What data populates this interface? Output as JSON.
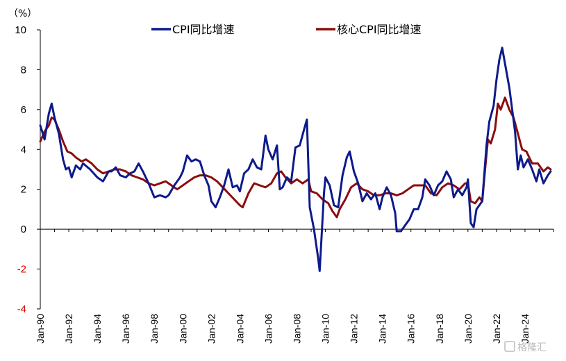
{
  "chart_data": {
    "type": "line",
    "unit_label": "（%）",
    "ylim": [
      -4,
      10
    ],
    "yticks": [
      10,
      8,
      6,
      4,
      2,
      0,
      -2,
      -4
    ],
    "xlim": [
      1990,
      2026
    ],
    "xticks": [
      "Jan-90",
      "Jan-92",
      "Jan-94",
      "Jan-96",
      "Jan-98",
      "Jan-00",
      "Jan-02",
      "Jan-04",
      "Jan-06",
      "Jan-08",
      "Jan-10",
      "Jan-12",
      "Jan-14",
      "Jan-16",
      "Jan-18",
      "Jan-20",
      "Jan-22",
      "Jan-24"
    ],
    "legend_position": "top",
    "grid": false,
    "series": [
      {
        "name": "CPI同比增速",
        "color": "#0d1a8c",
        "points": [
          [
            1990.0,
            5.2
          ],
          [
            1990.3,
            4.5
          ],
          [
            1990.6,
            5.8
          ],
          [
            1990.8,
            6.3
          ],
          [
            1991.0,
            5.6
          ],
          [
            1991.3,
            4.8
          ],
          [
            1991.6,
            3.5
          ],
          [
            1991.8,
            3.0
          ],
          [
            1992.0,
            3.1
          ],
          [
            1992.2,
            2.6
          ],
          [
            1992.5,
            3.2
          ],
          [
            1992.8,
            3.0
          ],
          [
            1993.0,
            3.3
          ],
          [
            1993.5,
            3.0
          ],
          [
            1994.0,
            2.6
          ],
          [
            1994.4,
            2.4
          ],
          [
            1994.8,
            2.9
          ],
          [
            1995.0,
            2.9
          ],
          [
            1995.3,
            3.1
          ],
          [
            1995.6,
            2.7
          ],
          [
            1996.0,
            2.6
          ],
          [
            1996.3,
            2.8
          ],
          [
            1996.6,
            2.9
          ],
          [
            1996.9,
            3.3
          ],
          [
            1997.2,
            2.9
          ],
          [
            1997.6,
            2.3
          ],
          [
            1998.0,
            1.6
          ],
          [
            1998.4,
            1.7
          ],
          [
            1998.8,
            1.6
          ],
          [
            1999.0,
            1.7
          ],
          [
            1999.4,
            2.2
          ],
          [
            1999.8,
            2.6
          ],
          [
            2000.0,
            2.9
          ],
          [
            2000.3,
            3.7
          ],
          [
            2000.6,
            3.4
          ],
          [
            2000.9,
            3.5
          ],
          [
            2001.2,
            3.4
          ],
          [
            2001.5,
            2.7
          ],
          [
            2001.8,
            2.2
          ],
          [
            2002.0,
            1.4
          ],
          [
            2002.3,
            1.1
          ],
          [
            2002.6,
            1.6
          ],
          [
            2002.9,
            2.2
          ],
          [
            2003.2,
            3.0
          ],
          [
            2003.5,
            2.1
          ],
          [
            2003.8,
            2.2
          ],
          [
            2004.0,
            1.9
          ],
          [
            2004.3,
            2.8
          ],
          [
            2004.6,
            3.0
          ],
          [
            2004.9,
            3.5
          ],
          [
            2005.2,
            3.1
          ],
          [
            2005.5,
            3.0
          ],
          [
            2005.8,
            4.7
          ],
          [
            2006.0,
            4.0
          ],
          [
            2006.3,
            3.5
          ],
          [
            2006.6,
            4.2
          ],
          [
            2006.8,
            2.0
          ],
          [
            2007.0,
            2.1
          ],
          [
            2007.3,
            2.6
          ],
          [
            2007.6,
            2.4
          ],
          [
            2007.9,
            4.1
          ],
          [
            2008.2,
            4.2
          ],
          [
            2008.5,
            5.0
          ],
          [
            2008.7,
            5.5
          ],
          [
            2008.9,
            1.1
          ],
          [
            2009.2,
            0.0
          ],
          [
            2009.5,
            -1.5
          ],
          [
            2009.6,
            -2.1
          ],
          [
            2009.9,
            1.8
          ],
          [
            2010.0,
            2.6
          ],
          [
            2010.3,
            2.2
          ],
          [
            2010.6,
            1.2
          ],
          [
            2010.9,
            1.1
          ],
          [
            2011.2,
            2.7
          ],
          [
            2011.5,
            3.6
          ],
          [
            2011.7,
            3.9
          ],
          [
            2012.0,
            2.9
          ],
          [
            2012.3,
            2.3
          ],
          [
            2012.6,
            1.4
          ],
          [
            2012.9,
            1.8
          ],
          [
            2013.2,
            1.5
          ],
          [
            2013.5,
            1.8
          ],
          [
            2013.8,
            1.0
          ],
          [
            2014.0,
            1.6
          ],
          [
            2014.3,
            2.1
          ],
          [
            2014.6,
            1.7
          ],
          [
            2014.9,
            0.8
          ],
          [
            2015.0,
            -0.1
          ],
          [
            2015.3,
            -0.1
          ],
          [
            2015.6,
            0.2
          ],
          [
            2015.9,
            0.5
          ],
          [
            2016.2,
            1.0
          ],
          [
            2016.5,
            1.0
          ],
          [
            2016.8,
            1.6
          ],
          [
            2017.0,
            2.5
          ],
          [
            2017.3,
            2.2
          ],
          [
            2017.6,
            1.7
          ],
          [
            2017.9,
            2.2
          ],
          [
            2018.2,
            2.4
          ],
          [
            2018.5,
            2.9
          ],
          [
            2018.8,
            2.5
          ],
          [
            2019.0,
            1.6
          ],
          [
            2019.3,
            2.0
          ],
          [
            2019.6,
            1.7
          ],
          [
            2019.9,
            2.1
          ],
          [
            2020.0,
            2.5
          ],
          [
            2020.2,
            0.3
          ],
          [
            2020.4,
            0.1
          ],
          [
            2020.6,
            1.0
          ],
          [
            2020.9,
            1.3
          ],
          [
            2021.0,
            1.4
          ],
          [
            2021.3,
            4.2
          ],
          [
            2021.5,
            5.4
          ],
          [
            2021.8,
            6.2
          ],
          [
            2022.0,
            7.5
          ],
          [
            2022.2,
            8.5
          ],
          [
            2022.4,
            9.1
          ],
          [
            2022.6,
            8.3
          ],
          [
            2022.9,
            7.1
          ],
          [
            2023.1,
            6.0
          ],
          [
            2023.3,
            4.9
          ],
          [
            2023.5,
            3.0
          ],
          [
            2023.7,
            3.7
          ],
          [
            2023.9,
            3.1
          ],
          [
            2024.2,
            3.5
          ],
          [
            2024.5,
            3.0
          ],
          [
            2024.8,
            2.4
          ],
          [
            2025.0,
            3.0
          ],
          [
            2025.3,
            2.3
          ],
          [
            2025.6,
            2.7
          ],
          [
            2025.8,
            2.9
          ]
        ]
      },
      {
        "name": "核心CPI同比增速",
        "color": "#8b0d0d",
        "points": [
          [
            1990.0,
            4.4
          ],
          [
            1990.3,
            4.9
          ],
          [
            1990.6,
            5.2
          ],
          [
            1990.8,
            5.6
          ],
          [
            1991.0,
            5.5
          ],
          [
            1991.3,
            5.0
          ],
          [
            1991.6,
            4.4
          ],
          [
            1991.9,
            3.9
          ],
          [
            1992.2,
            3.8
          ],
          [
            1992.5,
            3.6
          ],
          [
            1992.9,
            3.4
          ],
          [
            1993.2,
            3.5
          ],
          [
            1993.6,
            3.3
          ],
          [
            1994.0,
            3.0
          ],
          [
            1994.4,
            2.8
          ],
          [
            1994.8,
            2.9
          ],
          [
            1995.2,
            3.0
          ],
          [
            1995.6,
            3.0
          ],
          [
            1996.0,
            2.9
          ],
          [
            1996.4,
            2.7
          ],
          [
            1996.8,
            2.6
          ],
          [
            1997.2,
            2.5
          ],
          [
            1997.6,
            2.3
          ],
          [
            1998.0,
            2.2
          ],
          [
            1998.4,
            2.3
          ],
          [
            1998.8,
            2.4
          ],
          [
            1999.2,
            2.2
          ],
          [
            1999.6,
            2.0
          ],
          [
            2000.0,
            2.2
          ],
          [
            2000.4,
            2.4
          ],
          [
            2000.8,
            2.6
          ],
          [
            2001.2,
            2.7
          ],
          [
            2001.6,
            2.7
          ],
          [
            2002.0,
            2.6
          ],
          [
            2002.4,
            2.4
          ],
          [
            2002.8,
            2.1
          ],
          [
            2003.2,
            1.8
          ],
          [
            2003.6,
            1.5
          ],
          [
            2004.0,
            1.2
          ],
          [
            2004.2,
            1.1
          ],
          [
            2004.6,
            1.8
          ],
          [
            2005.0,
            2.3
          ],
          [
            2005.4,
            2.2
          ],
          [
            2005.8,
            2.1
          ],
          [
            2006.2,
            2.3
          ],
          [
            2006.6,
            2.8
          ],
          [
            2006.9,
            2.9
          ],
          [
            2007.2,
            2.6
          ],
          [
            2007.6,
            2.3
          ],
          [
            2008.0,
            2.5
          ],
          [
            2008.4,
            2.3
          ],
          [
            2008.8,
            2.5
          ],
          [
            2009.0,
            1.9
          ],
          [
            2009.4,
            1.8
          ],
          [
            2009.8,
            1.5
          ],
          [
            2010.2,
            1.3
          ],
          [
            2010.5,
            0.9
          ],
          [
            2010.8,
            0.6
          ],
          [
            2011.0,
            1.0
          ],
          [
            2011.4,
            1.5
          ],
          [
            2011.8,
            2.1
          ],
          [
            2012.2,
            2.3
          ],
          [
            2012.6,
            2.0
          ],
          [
            2013.0,
            1.9
          ],
          [
            2013.4,
            1.7
          ],
          [
            2013.8,
            1.7
          ],
          [
            2014.2,
            1.8
          ],
          [
            2014.6,
            1.8
          ],
          [
            2015.0,
            1.7
          ],
          [
            2015.4,
            1.8
          ],
          [
            2015.8,
            2.0
          ],
          [
            2016.2,
            2.2
          ],
          [
            2016.6,
            2.2
          ],
          [
            2017.0,
            2.2
          ],
          [
            2017.4,
            1.8
          ],
          [
            2017.8,
            1.7
          ],
          [
            2018.2,
            2.1
          ],
          [
            2018.6,
            2.3
          ],
          [
            2019.0,
            2.2
          ],
          [
            2019.4,
            2.0
          ],
          [
            2019.8,
            2.3
          ],
          [
            2020.0,
            2.3
          ],
          [
            2020.2,
            1.4
          ],
          [
            2020.5,
            1.3
          ],
          [
            2020.8,
            1.6
          ],
          [
            2021.0,
            1.4
          ],
          [
            2021.2,
            3.0
          ],
          [
            2021.4,
            4.5
          ],
          [
            2021.6,
            4.3
          ],
          [
            2021.9,
            5.0
          ],
          [
            2022.1,
            6.3
          ],
          [
            2022.3,
            6.0
          ],
          [
            2022.6,
            6.6
          ],
          [
            2022.9,
            6.0
          ],
          [
            2023.2,
            5.6
          ],
          [
            2023.5,
            4.8
          ],
          [
            2023.8,
            4.0
          ],
          [
            2024.1,
            3.9
          ],
          [
            2024.5,
            3.3
          ],
          [
            2024.9,
            3.3
          ],
          [
            2025.3,
            2.9
          ],
          [
            2025.6,
            3.1
          ],
          [
            2025.8,
            3.0
          ]
        ]
      }
    ]
  },
  "watermark": "格隆汇"
}
